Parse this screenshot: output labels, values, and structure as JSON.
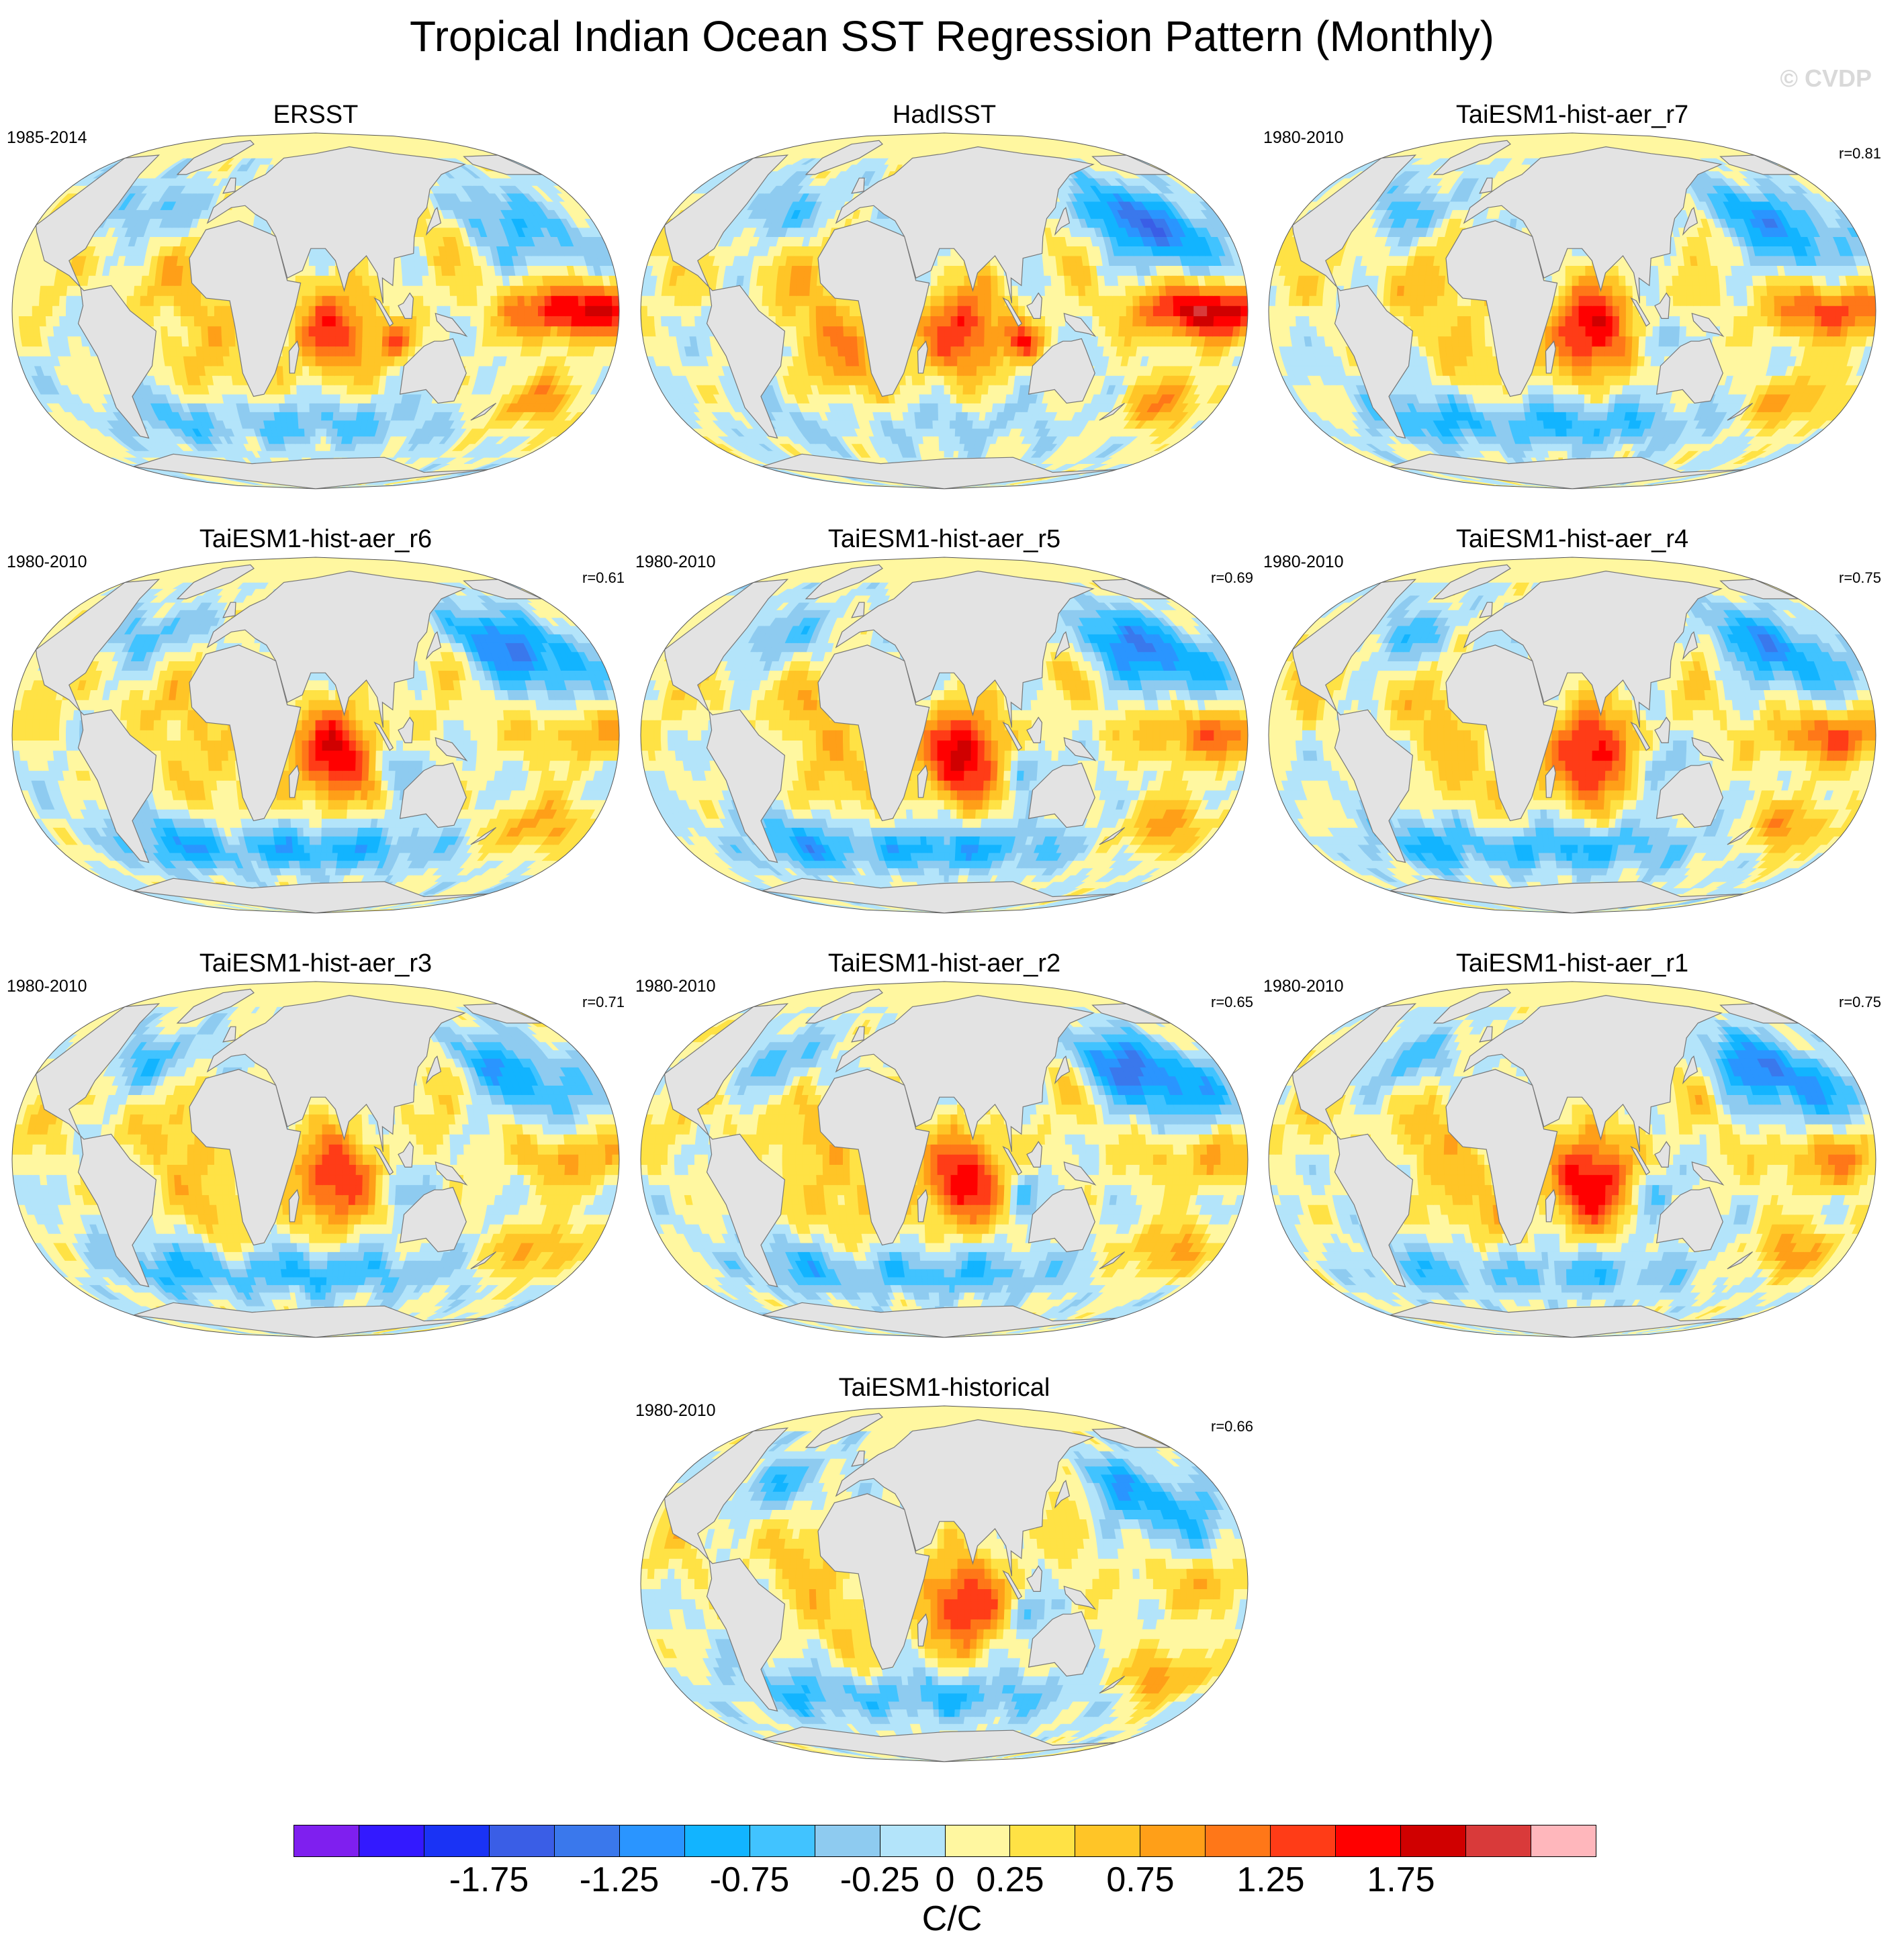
{
  "title": "Tropical Indian Ocean SST Regression Pattern (Monthly)",
  "credit": "© CVDP",
  "colors": {
    "land": "#e3e3e3",
    "coast": "#777777",
    "scale": [
      "#7f1fef",
      "#3319ff",
      "#1a33f5",
      "#3a5ee6",
      "#3a78ec",
      "#2a95ff",
      "#12b4ff",
      "#41c3ff",
      "#8ecbf0",
      "#b3e4fa",
      "#fff7a0",
      "#ffe245",
      "#ffc527",
      "#ff9f18",
      "#ff7718",
      "#ff3c17",
      "#ff0000",
      "#d00000",
      "#d93a3a",
      "#ffb7bc"
    ]
  },
  "panels": [
    {
      "id": "ersst",
      "title": "ERSST",
      "period": "1985-2014",
      "corr": "",
      "pattern": {
        "iod": 1.4,
        "enso": 1.9,
        "npac": -0.6,
        "satl": 0.6,
        "so": -0.6,
        "eio": 1.0,
        "seed": 1
      }
    },
    {
      "id": "hadisst",
      "title": "HadISST",
      "period": "",
      "corr": "",
      "pattern": {
        "iod": 1.5,
        "enso": 2.0,
        "npac": -1.2,
        "satl": 0.9,
        "so": -0.3,
        "eio": 1.1,
        "seed": 2
      }
    },
    {
      "id": "r7",
      "title": "TaiESM1-hist-aer_r7",
      "period": "1980-2010",
      "corr": "r=0.81",
      "pattern": {
        "iod": 1.8,
        "enso": 1.4,
        "npac": -0.9,
        "satl": 0.5,
        "so": -0.8,
        "eio": -0.6,
        "seed": 3
      }
    },
    {
      "id": "r6",
      "title": "TaiESM1-hist-aer_r6",
      "period": "1980-2010",
      "corr": "r=0.61",
      "pattern": {
        "iod": 1.8,
        "enso": 0.7,
        "npac": -1.1,
        "satl": 0.5,
        "so": -0.9,
        "eio": -0.7,
        "seed": 4
      }
    },
    {
      "id": "r5",
      "title": "TaiESM1-hist-aer_r5",
      "period": "1980-2010",
      "corr": "r=0.69",
      "pattern": {
        "iod": 1.9,
        "enso": 1.1,
        "npac": -1.1,
        "satl": 0.6,
        "so": -0.9,
        "eio": -0.8,
        "seed": 5
      }
    },
    {
      "id": "r4",
      "title": "TaiESM1-hist-aer_r4",
      "period": "1980-2010",
      "corr": "r=0.75",
      "pattern": {
        "iod": 1.8,
        "enso": 1.2,
        "npac": -0.9,
        "satl": 0.5,
        "so": -0.8,
        "eio": -0.8,
        "seed": 6
      }
    },
    {
      "id": "r3",
      "title": "TaiESM1-hist-aer_r3",
      "period": "1980-2010",
      "corr": "r=0.71",
      "pattern": {
        "iod": 1.6,
        "enso": 0.8,
        "npac": -0.8,
        "satl": 0.6,
        "so": -0.8,
        "eio": -0.5,
        "seed": 7
      }
    },
    {
      "id": "r2",
      "title": "TaiESM1-hist-aer_r2",
      "period": "1980-2010",
      "corr": "r=0.65",
      "pattern": {
        "iod": 1.7,
        "enso": 0.7,
        "npac": -1.2,
        "satl": 0.6,
        "so": -0.7,
        "eio": -0.6,
        "seed": 8
      }
    },
    {
      "id": "r1",
      "title": "TaiESM1-hist-aer_r1",
      "period": "1980-2010",
      "corr": "r=0.75",
      "pattern": {
        "iod": 1.8,
        "enso": 0.9,
        "npac": -1.1,
        "satl": 0.6,
        "so": -0.6,
        "eio": -0.8,
        "seed": 9
      }
    },
    {
      "id": "hist",
      "title": "TaiESM1-historical",
      "period": "1980-2010",
      "corr": "r=0.66",
      "pattern": {
        "iod": 1.6,
        "enso": 0.6,
        "npac": -0.8,
        "satl": 0.5,
        "so": -0.7,
        "eio": -0.7,
        "seed": 10
      }
    }
  ],
  "colorbar": {
    "levels": [
      -2.25,
      -2.0,
      -1.75,
      -1.5,
      -1.25,
      -1.0,
      -0.75,
      -0.5,
      -0.25,
      0,
      0.25,
      0.5,
      0.75,
      1.0,
      1.25,
      1.5,
      1.75,
      2.0,
      2.25
    ],
    "labels": [
      {
        "text": "-1.75",
        "value": -1.75
      },
      {
        "text": "-1.25",
        "value": -1.25
      },
      {
        "text": "-0.75",
        "value": -0.75
      },
      {
        "text": "-0.25",
        "value": -0.25
      },
      {
        "text": "0",
        "value": 0
      },
      {
        "text": "0.25",
        "value": 0.25
      },
      {
        "text": "0.75",
        "value": 0.75
      },
      {
        "text": "1.25",
        "value": 1.25
      },
      {
        "text": "1.75",
        "value": 1.75
      }
    ],
    "units": "C/C"
  }
}
